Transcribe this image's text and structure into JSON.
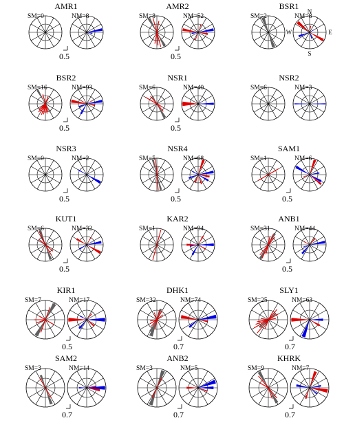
{
  "colors": {
    "sm_main": "#5f5f5f",
    "sm_line": "#e00000",
    "nm_main": "#0000e6",
    "nm_secondary": "#e00000",
    "circle": "#000000"
  },
  "directions": {
    "N": "N",
    "E": "E",
    "S": "S",
    "W": "W"
  },
  "stations": [
    {
      "name": "AMR1",
      "sm": "SM=0",
      "nm": "NM=8",
      "scale": "0.5",
      "sm_petals": [],
      "sm_lines": [],
      "nm_blue": [
        [
          80,
          10,
          0.95
        ],
        [
          100,
          10,
          0.35
        ]
      ],
      "nm_red": []
    },
    {
      "name": "AMR2",
      "sm": "SM=8",
      "nm": "NM=52",
      "scale": "0.5",
      "sm_petals": [
        [
          330,
          10,
          0.95
        ],
        [
          150,
          10,
          0.95
        ],
        [
          0,
          8,
          0.4
        ],
        [
          180,
          8,
          0.4
        ]
      ],
      "sm_lines": [
        [
          345,
          0.9
        ],
        [
          165,
          0.9
        ],
        [
          10,
          0.7
        ],
        [
          190,
          0.7
        ],
        [
          175,
          0.8
        ]
      ],
      "nm_blue": [
        [
          80,
          10,
          0.95
        ],
        [
          260,
          10,
          0.4
        ]
      ],
      "nm_red": [
        [
          100,
          10,
          0.6
        ],
        [
          280,
          10,
          0.95
        ],
        [
          20,
          6,
          0.5
        ],
        [
          200,
          6,
          0.5
        ]
      ]
    },
    {
      "name": "BSR1",
      "sm": "SM=2",
      "nm": "NM=8",
      "scale": "",
      "sm_petals": [
        [
          340,
          12,
          0.95
        ],
        [
          160,
          12,
          0.95
        ]
      ],
      "sm_lines": [],
      "nm_blue": [
        [
          250,
          10,
          0.7
        ],
        [
          160,
          10,
          0.4
        ],
        [
          60,
          8,
          0.3
        ]
      ],
      "nm_red": [
        [
          310,
          12,
          0.95
        ],
        [
          120,
          10,
          0.95
        ],
        [
          10,
          8,
          0.4
        ]
      ],
      "show_dirs": true
    },
    {
      "name": "BSR2",
      "sm": "SM=16",
      "nm": "NM=93",
      "scale": "0.5",
      "sm_petals": [
        [
          330,
          8,
          0.95
        ],
        [
          150,
          8,
          0.6
        ]
      ],
      "sm_lines": [
        [
          200,
          0.7
        ],
        [
          210,
          0.6
        ],
        [
          220,
          0.65
        ],
        [
          230,
          0.5
        ],
        [
          170,
          0.6
        ],
        [
          180,
          0.55
        ],
        [
          190,
          0.65
        ],
        [
          160,
          0.5
        ],
        [
          20,
          0.5
        ],
        [
          345,
          0.6
        ]
      ],
      "nm_blue": [
        [
          80,
          10,
          0.95
        ],
        [
          250,
          10,
          0.5
        ],
        [
          210,
          10,
          0.7
        ]
      ],
      "nm_red": [
        [
          280,
          12,
          0.95
        ],
        [
          100,
          10,
          0.5
        ],
        [
          60,
          6,
          0.4
        ],
        [
          300,
          6,
          0.4
        ]
      ]
    },
    {
      "name": "NSR1",
      "sm": "SM=6",
      "nm": "NM=40",
      "scale": "0.5",
      "sm_petals": [
        [
          150,
          10,
          0.95
        ],
        [
          330,
          10,
          0.5
        ]
      ],
      "sm_lines": [
        [
          300,
          0.8
        ],
        [
          140,
          0.6
        ],
        [
          120,
          0.4
        ],
        [
          320,
          0.6
        ]
      ],
      "nm_blue": [
        [
          90,
          8,
          0.95
        ]
      ],
      "nm_red": [
        [
          270,
          16,
          0.95
        ]
      ]
    },
    {
      "name": "NSR2",
      "sm": "SM=6",
      "nm": "NM=3",
      "scale": "",
      "sm_petals": [],
      "sm_lines": [],
      "nm_blue": [
        [
          90,
          4,
          0.95
        ],
        [
          270,
          4,
          0.9
        ]
      ],
      "nm_red": []
    },
    {
      "name": "NSR3",
      "sm": "SM=0",
      "nm": "NM=2",
      "scale": "0.5",
      "sm_petals": [],
      "sm_lines": [],
      "nm_blue": [
        [
          120,
          10,
          0.95
        ],
        [
          300,
          6,
          0.6
        ]
      ],
      "nm_red": []
    },
    {
      "name": "NSR4",
      "sm": "SM=5",
      "nm": "NM=68",
      "scale": "0.5",
      "sm_petals": [
        [
          345,
          8,
          0.95
        ],
        [
          165,
          8,
          0.95
        ],
        [
          10,
          6,
          0.5
        ],
        [
          190,
          6,
          0.5
        ]
      ],
      "sm_lines": [
        [
          355,
          0.95
        ],
        [
          175,
          0.95
        ]
      ],
      "nm_blue": [
        [
          80,
          10,
          0.95
        ],
        [
          120,
          10,
          0.7
        ],
        [
          250,
          10,
          0.6
        ],
        [
          300,
          10,
          0.4
        ]
      ],
      "nm_red": [
        [
          20,
          10,
          0.95
        ],
        [
          200,
          10,
          0.5
        ],
        [
          100,
          10,
          0.7
        ],
        [
          160,
          8,
          0.6
        ]
      ]
    },
    {
      "name": "SAM1",
      "sm": "SM=1",
      "nm": "NM=6",
      "scale": "0.5",
      "sm_petals": [],
      "sm_lines": [
        [
          60,
          0.7
        ],
        [
          240,
          0.7
        ]
      ],
      "nm_blue": [
        [
          300,
          10,
          0.95
        ],
        [
          120,
          10,
          0.8
        ],
        [
          80,
          8,
          0.6
        ]
      ],
      "nm_red": [
        [
          20,
          10,
          0.95
        ],
        [
          130,
          8,
          0.9
        ],
        [
          250,
          6,
          0.4
        ]
      ]
    },
    {
      "name": "KUT1",
      "sm": "SM=6",
      "nm": "NM=32",
      "scale": "0.5",
      "sm_petals": [
        [
          340,
          8,
          0.95
        ],
        [
          160,
          10,
          0.95
        ]
      ],
      "sm_lines": [
        [
          335,
          0.9
        ],
        [
          150,
          0.7
        ],
        [
          130,
          0.6
        ],
        [
          310,
          0.5
        ]
      ],
      "nm_blue": [
        [
          80,
          10,
          0.9
        ],
        [
          240,
          10,
          0.5
        ]
      ],
      "nm_red": [
        [
          120,
          10,
          0.95
        ],
        [
          300,
          10,
          0.7
        ],
        [
          30,
          6,
          0.5
        ]
      ]
    },
    {
      "name": "KAR2",
      "sm": "SM=1",
      "nm": "NM=94",
      "scale": "",
      "sm_petals": [],
      "sm_lines": [
        [
          15,
          0.95
        ],
        [
          195,
          0.95
        ]
      ],
      "nm_blue": [
        [
          90,
          10,
          0.95
        ],
        [
          210,
          10,
          0.7
        ],
        [
          260,
          8,
          0.5
        ]
      ],
      "nm_red": [
        [
          270,
          10,
          0.7
        ],
        [
          30,
          8,
          0.6
        ],
        [
          120,
          8,
          0.5
        ]
      ]
    },
    {
      "name": "ANB1",
      "sm": "SM=31",
      "nm": "NM=44",
      "scale": "0.5",
      "sm_petals": [
        [
          30,
          10,
          0.8
        ],
        [
          210,
          10,
          0.95
        ]
      ],
      "sm_lines": [
        [
          25,
          0.7
        ],
        [
          40,
          0.6
        ],
        [
          205,
          0.9
        ],
        [
          220,
          0.8
        ],
        [
          195,
          0.6
        ],
        [
          10,
          0.5
        ]
      ],
      "nm_blue": [
        [
          80,
          10,
          0.95
        ],
        [
          220,
          10,
          0.7
        ],
        [
          250,
          6,
          0.4
        ]
      ],
      "nm_red": [
        [
          40,
          10,
          0.5
        ],
        [
          300,
          8,
          0.4
        ]
      ]
    },
    {
      "name": "KIR1",
      "sm": "SM=7",
      "nm": "NM=17",
      "scale": "0.5",
      "sm_petals": [
        [
          30,
          12,
          0.95
        ],
        [
          210,
          12,
          0.95
        ]
      ],
      "sm_lines": [
        [
          20,
          0.7
        ],
        [
          200,
          0.7
        ],
        [
          250,
          0.5
        ],
        [
          270,
          0.6
        ],
        [
          300,
          0.4
        ],
        [
          120,
          0.5
        ]
      ],
      "nm_blue": [
        [
          90,
          12,
          0.95
        ],
        [
          220,
          10,
          0.6
        ],
        [
          300,
          8,
          0.4
        ]
      ],
      "nm_red": [
        [
          270,
          12,
          0.95
        ],
        [
          130,
          10,
          0.5
        ],
        [
          40,
          8,
          0.4
        ]
      ]
    },
    {
      "name": "DHK1",
      "sm": "SM=32",
      "nm": "NM=74",
      "scale": "0.7",
      "sm_petals": [
        [
          20,
          12,
          0.6
        ],
        [
          200,
          12,
          0.9
        ],
        [
          210,
          8,
          0.7
        ]
      ],
      "sm_lines": [
        [
          15,
          0.5
        ],
        [
          30,
          0.55
        ],
        [
          50,
          0.4
        ],
        [
          190,
          0.5
        ],
        [
          220,
          0.45
        ],
        [
          240,
          0.4
        ],
        [
          260,
          0.35
        ],
        [
          340,
          0.4
        ]
      ],
      "nm_blue": [
        [
          80,
          12,
          0.95
        ],
        [
          230,
          10,
          0.6
        ]
      ],
      "nm_red": [
        [
          280,
          12,
          0.9
        ],
        [
          100,
          10,
          0.5
        ]
      ]
    },
    {
      "name": "SLY1",
      "sm": "SM=25",
      "nm": "NM=63",
      "scale": "0.7",
      "sm_petals": [
        [
          50,
          10,
          0.5
        ],
        [
          230,
          10,
          0.6
        ]
      ],
      "sm_lines": [
        [
          40,
          0.7
        ],
        [
          60,
          0.6
        ],
        [
          220,
          0.9
        ],
        [
          240,
          0.85
        ],
        [
          250,
          0.7
        ],
        [
          260,
          0.6
        ],
        [
          280,
          0.4
        ],
        [
          200,
          0.5
        ],
        [
          30,
          0.5
        ],
        [
          80,
          0.4
        ]
      ],
      "nm_blue": [
        [
          90,
          10,
          0.7
        ],
        [
          200,
          12,
          0.95
        ]
      ],
      "nm_red": [
        [
          270,
          12,
          0.95
        ],
        [
          120,
          10,
          0.6
        ]
      ]
    },
    {
      "name": "SAM2",
      "sm": "SM=3",
      "nm": "NM=14",
      "scale": "0.7",
      "sm_petals": [
        [
          340,
          10,
          0.7
        ],
        [
          160,
          10,
          0.9
        ]
      ],
      "sm_lines": [
        [
          330,
          0.6
        ],
        [
          150,
          0.6
        ]
      ],
      "nm_blue": [
        [
          90,
          12,
          0.95
        ],
        [
          270,
          10,
          0.4
        ]
      ],
      "nm_red": [
        [
          100,
          10,
          0.7
        ],
        [
          80,
          8,
          0.5
        ]
      ]
    },
    {
      "name": "ANB2",
      "sm": "SM=3",
      "nm": "NM=5",
      "scale": "0.7",
      "sm_petals": [
        [
          20,
          12,
          0.95
        ],
        [
          200,
          12,
          0.95
        ],
        [
          240,
          8,
          0.4
        ]
      ],
      "sm_lines": [
        [
          25,
          0.6
        ],
        [
          205,
          0.6
        ]
      ],
      "nm_blue": [
        [
          70,
          12,
          0.95
        ],
        [
          90,
          10,
          0.8
        ]
      ],
      "nm_red": [
        [
          270,
          10,
          0.6
        ],
        [
          110,
          8,
          0.5
        ]
      ]
    },
    {
      "name": "KHRK",
      "sm": "SM=9",
      "nm": "NM=7",
      "scale": "0.7",
      "sm_petals": [
        [
          330,
          10,
          0.95
        ],
        [
          150,
          10,
          0.9
        ]
      ],
      "sm_lines": [
        [
          320,
          0.8
        ],
        [
          140,
          0.7
        ],
        [
          160,
          0.6
        ],
        [
          300,
          0.5
        ]
      ],
      "nm_blue": [
        [
          280,
          10,
          0.7
        ],
        [
          80,
          8,
          0.6
        ],
        [
          130,
          8,
          0.5
        ]
      ],
      "nm_red": [
        [
          100,
          12,
          0.95
        ],
        [
          20,
          10,
          0.9
        ],
        [
          200,
          8,
          0.6
        ]
      ]
    }
  ]
}
